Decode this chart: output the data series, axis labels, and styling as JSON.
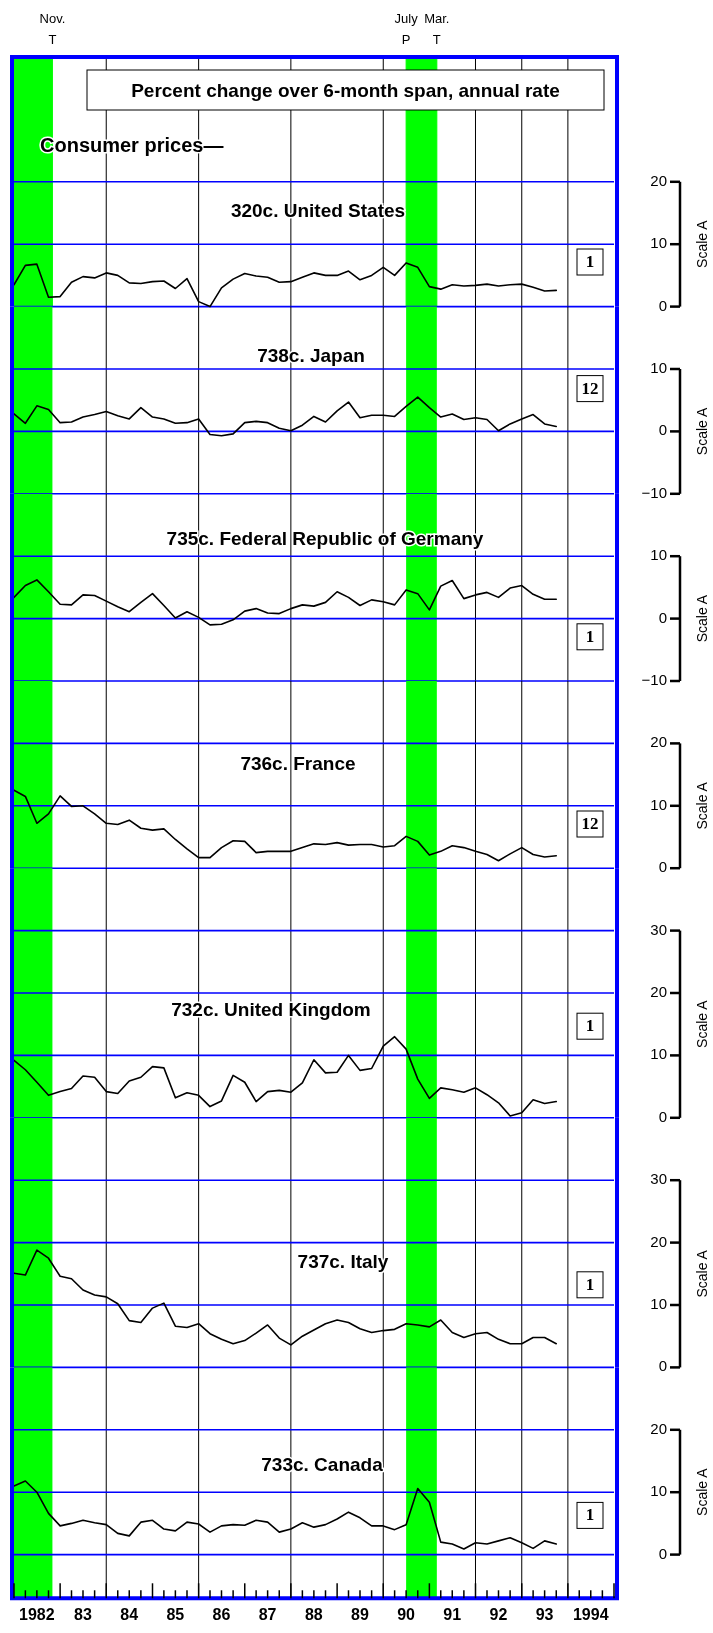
{
  "chart_data": [
    {
      "type": "other",
      "title": "Percent change over 6-month span, annual rate",
      "subtitle": "Consumer prices—"
    },
    {
      "type": "line",
      "title": "320c. United States",
      "ylabel": "Scale A",
      "annotations": [
        "1"
      ],
      "color": "#000000",
      "grid": "y",
      "tick_labels": "y",
      "xlim": [
        "1982-01",
        "1995-01"
      ],
      "ylim": [
        0,
        40
      ],
      "yticks": [
        0,
        10,
        20
      ],
      "x": [
        "1982-01",
        "1982-04",
        "1982-07",
        "1982-10",
        "1983-01",
        "1983-04",
        "1983-07",
        "1983-10",
        "1984-01",
        "1984-04",
        "1984-07",
        "1984-10",
        "1985-01",
        "1985-04",
        "1985-07",
        "1985-10",
        "1986-01",
        "1986-04",
        "1986-07",
        "1986-10",
        "1987-01",
        "1987-04",
        "1987-07",
        "1987-10",
        "1988-01",
        "1988-04",
        "1988-07",
        "1988-10",
        "1989-01",
        "1989-04",
        "1989-07",
        "1989-10",
        "1990-01",
        "1990-04",
        "1990-07",
        "1990-10",
        "1991-01",
        "1991-04",
        "1991-07",
        "1991-10",
        "1992-01",
        "1992-04",
        "1992-07",
        "1992-10",
        "1993-01",
        "1993-04",
        "1993-07",
        "1993-10"
      ],
      "values": [
        3.5,
        6.6,
        6.8,
        1.5,
        1.6,
        3.9,
        4.8,
        4.6,
        5.4,
        5.0,
        3.8,
        3.7,
        4.0,
        4.1,
        2.9,
        4.5,
        0.8,
        0.0,
        3.0,
        4.4,
        5.3,
        4.9,
        4.7,
        3.9,
        4.0,
        4.7,
        5.4,
        5.0,
        5.0,
        5.7,
        4.3,
        5.0,
        6.3,
        5.0,
        7.0,
        6.3,
        3.2,
        2.8,
        3.5,
        3.3,
        3.4,
        3.6,
        3.3,
        3.5,
        3.6,
        3.1,
        2.5,
        2.6
      ],
      "bands": [
        {
          "axis": "x",
          "from": "1982-01",
          "to": "1982-11",
          "color": "#00ff00"
        },
        {
          "axis": "x",
          "from": "1990-07",
          "to": "1991-03",
          "color": "#00ff00"
        }
      ],
      "ref_lines": [
        {
          "axis": "x",
          "value": "1984-01",
          "color": "#000000"
        },
        {
          "axis": "x",
          "value": "1986-01",
          "color": "#000000"
        },
        {
          "axis": "x",
          "value": "1988-01",
          "color": "#000000"
        },
        {
          "axis": "x",
          "value": "1990-01",
          "color": "#000000"
        },
        {
          "axis": "x",
          "value": "1992-01",
          "color": "#000000"
        },
        {
          "axis": "x",
          "value": "1993-01",
          "color": "#000000"
        },
        {
          "axis": "x",
          "value": "1994-01",
          "color": "#000000"
        },
        {
          "axis": "x",
          "value": "1982-11",
          "label": "Nov. T",
          "color": "#00ff00"
        },
        {
          "axis": "x",
          "value": "1990-07",
          "label": "July P",
          "color": "#00ff00"
        },
        {
          "axis": "x",
          "value": "1991-03",
          "label": "Mar. T",
          "color": "#00ff00"
        }
      ]
    },
    {
      "type": "line",
      "title": "738c. Japan",
      "ylabel": "Scale A",
      "annotations": [
        "12"
      ],
      "color": "#000000",
      "grid": "y",
      "tick_labels": "y",
      "xlim": [
        "1982-01",
        "1995-01"
      ],
      "ylim": [
        -10,
        20
      ],
      "yticks": [
        {
          "value": -10,
          "label": "−10"
        },
        0,
        10
      ],
      "x": [
        "1982-01",
        "1982-04",
        "1982-07",
        "1982-10",
        "1983-01",
        "1983-04",
        "1983-07",
        "1983-10",
        "1984-01",
        "1984-04",
        "1984-07",
        "1984-10",
        "1985-01",
        "1985-04",
        "1985-07",
        "1985-10",
        "1986-01",
        "1986-04",
        "1986-07",
        "1986-10",
        "1987-01",
        "1987-04",
        "1987-07",
        "1987-10",
        "1988-01",
        "1988-04",
        "1988-07",
        "1988-10",
        "1989-01",
        "1989-04",
        "1989-07",
        "1989-10",
        "1990-01",
        "1990-04",
        "1990-07",
        "1990-10",
        "1991-01",
        "1991-04",
        "1991-07",
        "1991-10",
        "1992-01",
        "1992-04",
        "1992-07",
        "1992-10",
        "1993-01",
        "1993-04",
        "1993-07",
        "1993-10"
      ],
      "values": [
        2.8,
        1.3,
        4.1,
        3.5,
        1.4,
        1.5,
        2.3,
        2.7,
        3.2,
        2.5,
        2.0,
        3.8,
        2.3,
        2.0,
        1.3,
        1.4,
        2.0,
        -0.5,
        -0.7,
        -0.4,
        1.4,
        1.6,
        1.4,
        0.5,
        0.1,
        1.0,
        2.4,
        1.5,
        3.3,
        4.7,
        2.2,
        2.6,
        2.6,
        2.4,
        4.0,
        5.5,
        3.8,
        2.3,
        2.8,
        1.9,
        2.2,
        1.9,
        0.1,
        1.2,
        2.0,
        2.7,
        1.2,
        0.8
      ],
      "bands": [
        {
          "axis": "x",
          "from": "1982-01",
          "to": "1982-11",
          "color": "#00ff00"
        },
        {
          "axis": "x",
          "from": "1990-07",
          "to": "1991-03",
          "color": "#00ff00"
        }
      ],
      "ref_lines": [
        {
          "axis": "x",
          "value": "1984-01",
          "color": "#000000"
        },
        {
          "axis": "x",
          "value": "1986-01",
          "color": "#000000"
        },
        {
          "axis": "x",
          "value": "1988-01",
          "color": "#000000"
        },
        {
          "axis": "x",
          "value": "1990-01",
          "color": "#000000"
        },
        {
          "axis": "x",
          "value": "1992-01",
          "color": "#000000"
        },
        {
          "axis": "x",
          "value": "1993-01",
          "color": "#000000"
        },
        {
          "axis": "x",
          "value": "1994-01",
          "color": "#000000"
        }
      ]
    },
    {
      "type": "line",
      "title": "735c. Federal Republic of Germany",
      "ylabel": "Scale A",
      "annotations": [
        "1"
      ],
      "color": "#000000",
      "grid": "y",
      "tick_labels": "y",
      "xlim": [
        "1982-01",
        "1995-01"
      ],
      "ylim": [
        -10,
        20
      ],
      "yticks": [
        {
          "value": -10,
          "label": "−10"
        },
        0,
        10
      ],
      "x": [
        "1982-01",
        "1982-04",
        "1982-07",
        "1982-10",
        "1983-01",
        "1983-04",
        "1983-07",
        "1983-10",
        "1984-01",
        "1984-04",
        "1984-07",
        "1984-10",
        "1985-01",
        "1985-04",
        "1985-07",
        "1985-10",
        "1986-01",
        "1986-04",
        "1986-07",
        "1986-10",
        "1987-01",
        "1987-04",
        "1987-07",
        "1987-10",
        "1988-01",
        "1988-04",
        "1988-07",
        "1988-10",
        "1989-01",
        "1989-04",
        "1989-07",
        "1989-10",
        "1990-01",
        "1990-04",
        "1990-07",
        "1990-10",
        "1991-01",
        "1991-04",
        "1991-07",
        "1991-10",
        "1992-01",
        "1992-04",
        "1992-07",
        "1992-10",
        "1993-01",
        "1993-04",
        "1993-07",
        "1993-10"
      ],
      "values": [
        3.4,
        5.3,
        6.2,
        4.3,
        2.3,
        2.2,
        3.8,
        3.7,
        2.8,
        1.9,
        1.1,
        2.6,
        4.0,
        2.1,
        0.1,
        1.1,
        0.2,
        -1.0,
        -0.9,
        -0.2,
        1.2,
        1.6,
        0.9,
        0.8,
        1.6,
        2.2,
        2.0,
        2.6,
        4.3,
        3.4,
        2.1,
        3.0,
        2.7,
        2.2,
        4.6,
        4.0,
        1.4,
        5.2,
        6.1,
        3.2,
        3.8,
        4.2,
        3.4,
        4.9,
        5.3,
        3.9,
        3.1,
        3.1
      ],
      "bands": [
        {
          "axis": "x",
          "from": "1982-01",
          "to": "1982-11",
          "color": "#00ff00"
        },
        {
          "axis": "x",
          "from": "1990-07",
          "to": "1991-03",
          "color": "#00ff00"
        }
      ],
      "ref_lines": [
        {
          "axis": "x",
          "value": "1984-01",
          "color": "#000000"
        },
        {
          "axis": "x",
          "value": "1986-01",
          "color": "#000000"
        },
        {
          "axis": "x",
          "value": "1988-01",
          "color": "#000000"
        },
        {
          "axis": "x",
          "value": "1990-01",
          "color": "#000000"
        },
        {
          "axis": "x",
          "value": "1992-01",
          "color": "#000000"
        },
        {
          "axis": "x",
          "value": "1993-01",
          "color": "#000000"
        },
        {
          "axis": "x",
          "value": "1994-01",
          "color": "#000000"
        }
      ]
    },
    {
      "type": "line",
      "title": "736c. France",
      "ylabel": "Scale A",
      "annotations": [
        "12"
      ],
      "color": "#000000",
      "grid": "y",
      "tick_labels": "y",
      "xlim": [
        "1982-01",
        "1995-01"
      ],
      "ylim": [
        0,
        30
      ],
      "yticks": [
        0,
        10,
        20
      ],
      "x": [
        "1982-01",
        "1982-04",
        "1982-07",
        "1982-10",
        "1983-01",
        "1983-04",
        "1983-07",
        "1983-10",
        "1984-01",
        "1984-04",
        "1984-07",
        "1984-10",
        "1985-01",
        "1985-04",
        "1985-07",
        "1985-10",
        "1986-01",
        "1986-04",
        "1986-07",
        "1986-10",
        "1987-01",
        "1987-04",
        "1987-07",
        "1987-10",
        "1988-01",
        "1988-04",
        "1988-07",
        "1988-10",
        "1989-01",
        "1989-04",
        "1989-07",
        "1989-10",
        "1990-01",
        "1990-04",
        "1990-07",
        "1990-10",
        "1991-01",
        "1991-04",
        "1991-07",
        "1991-10",
        "1992-01",
        "1992-04",
        "1992-07",
        "1992-10",
        "1993-01",
        "1993-04",
        "1993-07",
        "1993-10"
      ],
      "values": [
        12.5,
        11.5,
        7.2,
        8.7,
        11.6,
        9.9,
        10.0,
        8.7,
        7.2,
        7.0,
        7.7,
        6.4,
        6.1,
        6.3,
        4.6,
        3.1,
        1.7,
        1.7,
        3.3,
        4.4,
        4.3,
        2.5,
        2.7,
        2.7,
        2.7,
        3.3,
        3.9,
        3.8,
        4.1,
        3.7,
        3.8,
        3.8,
        3.4,
        3.6,
        5.1,
        4.3,
        2.1,
        2.7,
        3.6,
        3.3,
        2.7,
        2.2,
        1.2,
        2.3,
        3.3,
        2.2,
        1.8,
        2.0
      ],
      "bands": [
        {
          "axis": "x",
          "from": "1982-01",
          "to": "1982-11",
          "color": "#00ff00"
        },
        {
          "axis": "x",
          "from": "1990-07",
          "to": "1991-03",
          "color": "#00ff00"
        }
      ],
      "ref_lines": [
        {
          "axis": "x",
          "value": "1984-01",
          "color": "#000000"
        },
        {
          "axis": "x",
          "value": "1986-01",
          "color": "#000000"
        },
        {
          "axis": "x",
          "value": "1988-01",
          "color": "#000000"
        },
        {
          "axis": "x",
          "value": "1990-01",
          "color": "#000000"
        },
        {
          "axis": "x",
          "value": "1992-01",
          "color": "#000000"
        },
        {
          "axis": "x",
          "value": "1993-01",
          "color": "#000000"
        },
        {
          "axis": "x",
          "value": "1994-01",
          "color": "#000000"
        }
      ]
    },
    {
      "type": "line",
      "title": "732c. United Kingdom",
      "ylabel": "Scale A",
      "annotations": [
        "1"
      ],
      "color": "#000000",
      "grid": "y",
      "tick_labels": "y",
      "xlim": [
        "1982-01",
        "1995-01"
      ],
      "ylim": [
        0,
        40
      ],
      "yticks": [
        0,
        10,
        20,
        30
      ],
      "x": [
        "1982-01",
        "1982-04",
        "1982-07",
        "1982-10",
        "1983-01",
        "1983-04",
        "1983-07",
        "1983-10",
        "1984-01",
        "1984-04",
        "1984-07",
        "1984-10",
        "1985-01",
        "1985-04",
        "1985-07",
        "1985-10",
        "1986-01",
        "1986-04",
        "1986-07",
        "1986-10",
        "1987-01",
        "1987-04",
        "1987-07",
        "1987-10",
        "1988-01",
        "1988-04",
        "1988-07",
        "1988-10",
        "1989-01",
        "1989-04",
        "1989-07",
        "1989-10",
        "1990-01",
        "1990-04",
        "1990-07",
        "1990-10",
        "1991-01",
        "1991-04",
        "1991-07",
        "1991-10",
        "1992-01",
        "1992-04",
        "1992-07",
        "1992-10",
        "1993-01",
        "1993-04",
        "1993-07",
        "1993-10"
      ],
      "values": [
        9.2,
        7.7,
        5.7,
        3.6,
        4.2,
        4.7,
        6.7,
        6.5,
        4.2,
        3.9,
        5.9,
        6.5,
        8.2,
        8.0,
        3.2,
        4.0,
        3.6,
        1.8,
        2.7,
        6.8,
        5.7,
        2.6,
        4.2,
        4.4,
        4.1,
        5.6,
        9.3,
        7.2,
        7.3,
        10.0,
        7.6,
        7.9,
        11.5,
        13.0,
        11.0,
        6.2,
        3.1,
        4.8,
        4.5,
        4.1,
        4.8,
        3.7,
        2.4,
        0.3,
        0.8,
        2.9,
        2.3,
        2.6
      ],
      "bands": [
        {
          "axis": "x",
          "from": "1982-01",
          "to": "1982-11",
          "color": "#00ff00"
        },
        {
          "axis": "x",
          "from": "1990-07",
          "to": "1991-03",
          "color": "#00ff00"
        }
      ],
      "ref_lines": [
        {
          "axis": "x",
          "value": "1984-01",
          "color": "#000000"
        },
        {
          "axis": "x",
          "value": "1986-01",
          "color": "#000000"
        },
        {
          "axis": "x",
          "value": "1988-01",
          "color": "#000000"
        },
        {
          "axis": "x",
          "value": "1990-01",
          "color": "#000000"
        },
        {
          "axis": "x",
          "value": "1992-01",
          "color": "#000000"
        },
        {
          "axis": "x",
          "value": "1993-01",
          "color": "#000000"
        },
        {
          "axis": "x",
          "value": "1994-01",
          "color": "#000000"
        }
      ]
    },
    {
      "type": "line",
      "title": "737c. Italy",
      "ylabel": "Scale A",
      "annotations": [
        "1"
      ],
      "color": "#000000",
      "grid": "y",
      "tick_labels": "y",
      "xlim": [
        "1982-01",
        "1995-01"
      ],
      "ylim": [
        0,
        40
      ],
      "yticks": [
        0,
        10,
        20,
        30
      ],
      "x": [
        "1982-01",
        "1982-04",
        "1982-07",
        "1982-10",
        "1983-01",
        "1983-04",
        "1983-07",
        "1983-10",
        "1984-01",
        "1984-04",
        "1984-07",
        "1984-10",
        "1985-01",
        "1985-04",
        "1985-07",
        "1985-10",
        "1986-01",
        "1986-04",
        "1986-07",
        "1986-10",
        "1987-01",
        "1987-04",
        "1987-07",
        "1987-10",
        "1988-01",
        "1988-04",
        "1988-07",
        "1988-10",
        "1989-01",
        "1989-04",
        "1989-07",
        "1989-10",
        "1990-01",
        "1990-04",
        "1990-07",
        "1990-10",
        "1991-01",
        "1991-04",
        "1991-07",
        "1991-10",
        "1992-01",
        "1992-04",
        "1992-07",
        "1992-10",
        "1993-01",
        "1993-04",
        "1993-07",
        "1993-10"
      ],
      "values": [
        15.1,
        14.8,
        18.8,
        17.5,
        14.6,
        14.2,
        12.4,
        11.6,
        11.3,
        10.2,
        7.5,
        7.2,
        9.5,
        10.3,
        6.6,
        6.4,
        7.0,
        5.4,
        4.5,
        3.8,
        4.3,
        5.5,
        6.8,
        4.7,
        3.6,
        5.0,
        6.0,
        7.0,
        7.6,
        7.2,
        6.2,
        5.6,
        5.9,
        6.1,
        7.0,
        6.8,
        6.5,
        7.6,
        5.6,
        4.8,
        5.4,
        5.6,
        4.5,
        3.8,
        3.8,
        4.8,
        4.8,
        3.8
      ],
      "bands": [
        {
          "axis": "x",
          "from": "1982-01",
          "to": "1982-11",
          "color": "#00ff00"
        },
        {
          "axis": "x",
          "from": "1990-07",
          "to": "1991-03",
          "color": "#00ff00"
        }
      ],
      "ref_lines": [
        {
          "axis": "x",
          "value": "1984-01",
          "color": "#000000"
        },
        {
          "axis": "x",
          "value": "1986-01",
          "color": "#000000"
        },
        {
          "axis": "x",
          "value": "1988-01",
          "color": "#000000"
        },
        {
          "axis": "x",
          "value": "1990-01",
          "color": "#000000"
        },
        {
          "axis": "x",
          "value": "1992-01",
          "color": "#000000"
        },
        {
          "axis": "x",
          "value": "1993-01",
          "color": "#000000"
        },
        {
          "axis": "x",
          "value": "1994-01",
          "color": "#000000"
        }
      ]
    },
    {
      "type": "line",
      "title": "733c. Canada",
      "ylabel": "Scale A",
      "annotations": [
        "1"
      ],
      "color": "#000000",
      "grid": "y",
      "xlim": [
        "1982-01",
        "1995-01"
      ],
      "ylim": [
        -7,
        30
      ],
      "yticks": [
        0,
        10,
        20
      ],
      "xticks": [
        {
          "value": "1982-01",
          "label": null
        },
        {
          "value": "1982-04",
          "label": null
        },
        {
          "value": "1982-07",
          "label": "1982"
        },
        {
          "value": "1982-10",
          "label": null
        },
        {
          "value": "1983-01",
          "label": null
        },
        {
          "value": "1983-04",
          "label": null
        },
        {
          "value": "1983-07",
          "label": "83"
        },
        {
          "value": "1983-10",
          "label": null
        },
        {
          "value": "1984-01",
          "label": null
        },
        {
          "value": "1984-04",
          "label": null
        },
        {
          "value": "1984-07",
          "label": "84"
        },
        {
          "value": "1984-10",
          "label": null
        },
        {
          "value": "1985-01",
          "label": null
        },
        {
          "value": "1985-04",
          "label": null
        },
        {
          "value": "1985-07",
          "label": "85"
        },
        {
          "value": "1985-10",
          "label": null
        },
        {
          "value": "1986-01",
          "label": null
        },
        {
          "value": "1986-04",
          "label": null
        },
        {
          "value": "1986-07",
          "label": "86"
        },
        {
          "value": "1986-10",
          "label": null
        },
        {
          "value": "1987-01",
          "label": null
        },
        {
          "value": "1987-04",
          "label": null
        },
        {
          "value": "1987-07",
          "label": "87"
        },
        {
          "value": "1987-10",
          "label": null
        },
        {
          "value": "1988-01",
          "label": null
        },
        {
          "value": "1988-04",
          "label": null
        },
        {
          "value": "1988-07",
          "label": "88"
        },
        {
          "value": "1988-10",
          "label": null
        },
        {
          "value": "1989-01",
          "label": null
        },
        {
          "value": "1989-04",
          "label": null
        },
        {
          "value": "1989-07",
          "label": "89"
        },
        {
          "value": "1989-10",
          "label": null
        },
        {
          "value": "1990-01",
          "label": null
        },
        {
          "value": "1990-04",
          "label": null
        },
        {
          "value": "1990-07",
          "label": "90"
        },
        {
          "value": "1990-10",
          "label": null
        },
        {
          "value": "1991-01",
          "label": null
        },
        {
          "value": "1991-04",
          "label": null
        },
        {
          "value": "1991-07",
          "label": "91"
        },
        {
          "value": "1991-10",
          "label": null
        },
        {
          "value": "1992-01",
          "label": null
        },
        {
          "value": "1992-04",
          "label": null
        },
        {
          "value": "1992-07",
          "label": "92"
        },
        {
          "value": "1992-10",
          "label": null
        },
        {
          "value": "1993-01",
          "label": null
        },
        {
          "value": "1993-04",
          "label": null
        },
        {
          "value": "1993-07",
          "label": "93"
        },
        {
          "value": "1993-10",
          "label": null
        },
        {
          "value": "1994-01",
          "label": null
        },
        {
          "value": "1994-04",
          "label": null
        },
        {
          "value": "1994-07",
          "label": "1994"
        },
        {
          "value": "1994-10",
          "label": null
        },
        {
          "value": "1995-01",
          "label": null
        }
      ],
      "x": [
        "1982-01",
        "1982-04",
        "1982-07",
        "1982-10",
        "1983-01",
        "1983-04",
        "1983-07",
        "1983-10",
        "1984-01",
        "1984-04",
        "1984-07",
        "1984-10",
        "1985-01",
        "1985-04",
        "1985-07",
        "1985-10",
        "1986-01",
        "1986-04",
        "1986-07",
        "1986-10",
        "1987-01",
        "1987-04",
        "1987-07",
        "1987-10",
        "1988-01",
        "1988-04",
        "1988-07",
        "1988-10",
        "1989-01",
        "1989-04",
        "1989-07",
        "1989-10",
        "1990-01",
        "1990-04",
        "1990-07",
        "1990-10",
        "1991-01",
        "1991-04",
        "1991-07",
        "1991-10",
        "1992-01",
        "1992-04",
        "1992-07",
        "1992-10",
        "1993-01",
        "1993-04",
        "1993-07",
        "1993-10"
      ],
      "values": [
        11.0,
        11.8,
        10.0,
        6.6,
        4.6,
        5.0,
        5.5,
        5.1,
        4.8,
        3.4,
        3.0,
        5.2,
        5.5,
        4.1,
        3.8,
        5.2,
        4.9,
        3.6,
        4.6,
        4.8,
        4.7,
        5.5,
        5.2,
        3.6,
        4.1,
        5.1,
        4.4,
        4.8,
        5.7,
        6.8,
        5.9,
        4.6,
        4.6,
        4.0,
        4.8,
        10.6,
        8.4,
        2.0,
        1.7,
        0.9,
        1.9,
        1.7,
        2.2,
        2.7,
        1.9,
        1.0,
        2.2,
        1.7
      ],
      "bands": [
        {
          "axis": "x",
          "from": "1982-01",
          "to": "1982-11",
          "color": "#00ff00"
        },
        {
          "axis": "x",
          "from": "1990-07",
          "to": "1991-03",
          "color": "#00ff00"
        }
      ],
      "ref_lines": [
        {
          "axis": "x",
          "value": "1984-01",
          "color": "#000000"
        },
        {
          "axis": "x",
          "value": "1986-01",
          "color": "#000000"
        },
        {
          "axis": "x",
          "value": "1988-01",
          "color": "#000000"
        },
        {
          "axis": "x",
          "value": "1990-01",
          "color": "#000000"
        },
        {
          "axis": "x",
          "value": "1992-01",
          "color": "#000000"
        },
        {
          "axis": "x",
          "value": "1993-01",
          "color": "#000000"
        },
        {
          "axis": "x",
          "value": "1994-01",
          "color": "#000000"
        }
      ]
    }
  ]
}
